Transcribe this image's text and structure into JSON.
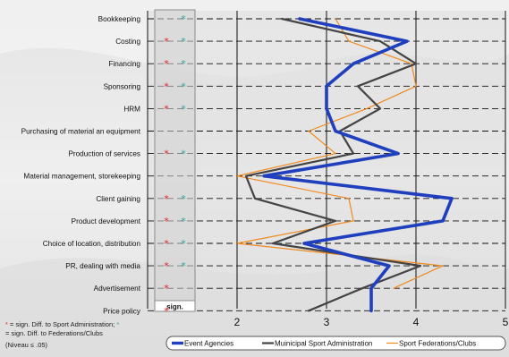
{
  "chart_data": {
    "type": "line",
    "categories": [
      "Bookkeeping",
      "Costing",
      "Financing",
      "Sponsoring",
      "HRM",
      "Purchasing of material an equipment",
      "Production of services",
      "Material management, storekeeping",
      "Client gaining",
      "Product development",
      "Choice of location, distribution",
      "PR, dealing with media",
      "Advertisement",
      "Price policy"
    ],
    "x_ticks": [
      "2",
      "3",
      "4",
      "5"
    ],
    "xlim": [
      1,
      5
    ],
    "grid": true,
    "legend_position": "bottom",
    "significance_column_label": "sign.",
    "significance": {
      "red": [
        false,
        true,
        true,
        true,
        true,
        false,
        true,
        false,
        true,
        true,
        true,
        true,
        true,
        true
      ],
      "teal": [
        true,
        true,
        true,
        true,
        true,
        false,
        true,
        false,
        true,
        true,
        true,
        true,
        false,
        false
      ]
    },
    "series": [
      {
        "name": "Event Agencies",
        "color": "#1f3fbf",
        "values": [
          2.7,
          3.9,
          3.3,
          3.0,
          3.0,
          3.1,
          3.8,
          2.3,
          4.4,
          4.3,
          2.75,
          3.7,
          3.5,
          3.5
        ]
      },
      {
        "name": "Muinicipal Sport Administration",
        "color": "#444444",
        "values": [
          2.5,
          3.6,
          4.0,
          3.35,
          3.6,
          3.15,
          3.3,
          2.1,
          2.2,
          3.1,
          2.4,
          4.05,
          3.4,
          2.8
        ]
      },
      {
        "name": "Sport Federations/Clubs",
        "color": "#f08a1e",
        "values": [
          3.1,
          3.25,
          3.95,
          4.0,
          3.45,
          2.8,
          3.1,
          2.0,
          3.25,
          3.3,
          2.0,
          4.3,
          3.75,
          null
        ]
      }
    ],
    "footnote": {
      "line1_prefix": " = sign. Diff. to  Sport Administration;",
      "line2": "= sign. Diff. to  Federations/Clubs",
      "line3": "(Niveau ≤ .05)"
    }
  }
}
